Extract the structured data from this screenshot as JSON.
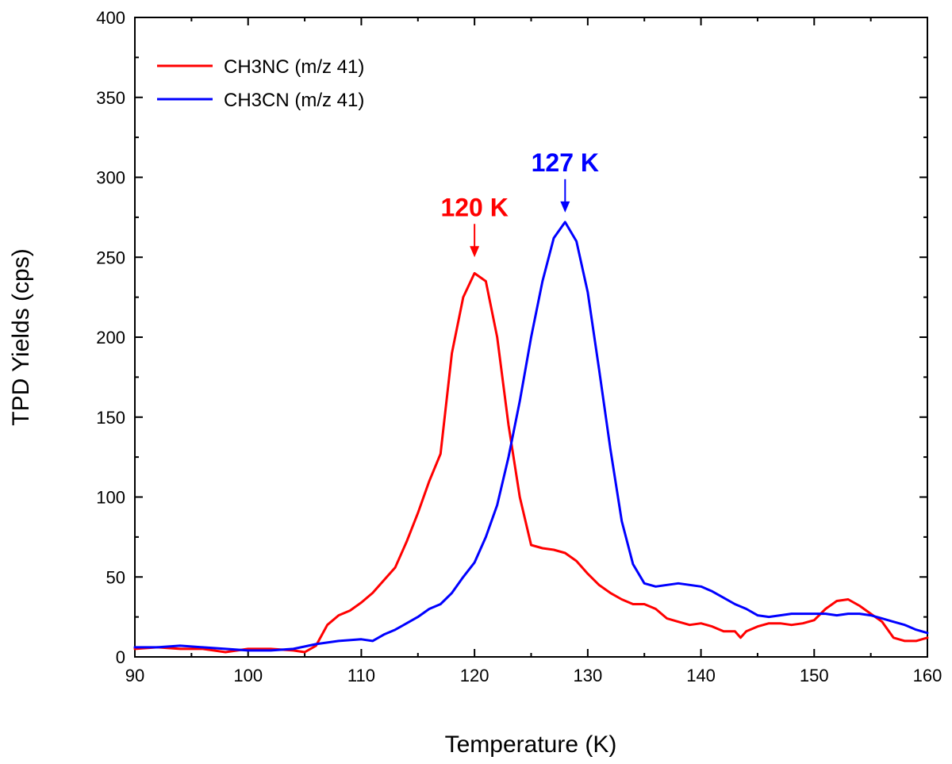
{
  "chart_data": {
    "type": "line",
    "title": "",
    "xlabel": "Temperature (K)",
    "ylabel": "TPD Yields (cps)",
    "xlim": [
      90,
      160
    ],
    "ylim": [
      0,
      400
    ],
    "x_ticks": [
      90,
      100,
      110,
      120,
      130,
      140,
      150,
      160
    ],
    "y_ticks": [
      0,
      50,
      100,
      150,
      200,
      250,
      300,
      350,
      400
    ],
    "grid": false,
    "legend_position": "top-left",
    "series": [
      {
        "name": "CH3NC (m/z 41)",
        "color": "#ff0000",
        "x": [
          90,
          92,
          94,
          96,
          98,
          100,
          102,
          104,
          105,
          106,
          107,
          108,
          109,
          110,
          111,
          112,
          113,
          114,
          115,
          116,
          117,
          118,
          119,
          120,
          121,
          122,
          123,
          124,
          125,
          126,
          127,
          128,
          129,
          130,
          131,
          132,
          133,
          134,
          135,
          136,
          137,
          138,
          139,
          140,
          141,
          142,
          143,
          143.5,
          144,
          145,
          146,
          147,
          148,
          149,
          150,
          151,
          152,
          153,
          154,
          155,
          156,
          157,
          158,
          159,
          160
        ],
        "values": [
          5,
          6,
          5,
          5,
          3,
          5,
          5,
          4,
          3,
          7,
          20,
          26,
          29,
          34,
          40,
          48,
          56,
          72,
          90,
          110,
          127,
          190,
          225,
          240,
          235,
          200,
          145,
          100,
          70,
          68,
          67,
          65,
          60,
          52,
          45,
          40,
          36,
          33,
          33,
          30,
          24,
          22,
          20,
          21,
          19,
          16,
          16,
          12,
          16,
          19,
          21,
          21,
          20,
          21,
          23,
          30,
          35,
          36,
          32,
          27,
          22,
          12,
          10,
          10,
          12
        ]
      },
      {
        "name": "CH3CN (m/z 41)",
        "color": "#0000ff",
        "x": [
          90,
          92,
          94,
          96,
          98,
          100,
          102,
          104,
          106,
          108,
          110,
          111,
          112,
          113,
          114,
          115,
          116,
          117,
          118,
          119,
          120,
          121,
          122,
          123,
          124,
          125,
          126,
          127,
          128,
          129,
          130,
          131,
          132,
          133,
          134,
          135,
          136,
          137,
          138,
          139,
          140,
          141,
          142,
          143,
          144,
          145,
          146,
          147,
          148,
          149,
          150,
          151,
          152,
          153,
          154,
          155,
          156,
          157,
          158,
          159,
          160
        ],
        "values": [
          6,
          6,
          7,
          6,
          5,
          4,
          4,
          5,
          8,
          10,
          11,
          10,
          14,
          17,
          21,
          25,
          30,
          33,
          40,
          50,
          59,
          75,
          95,
          125,
          160,
          200,
          235,
          262,
          272,
          260,
          228,
          180,
          130,
          85,
          58,
          46,
          44,
          45,
          46,
          45,
          44,
          41,
          37,
          33,
          30,
          26,
          25,
          26,
          27,
          27,
          27,
          27,
          26,
          27,
          27,
          26,
          24,
          22,
          20,
          17,
          15
        ]
      }
    ],
    "annotations": [
      {
        "text": "120 K",
        "x": 120,
        "y": 250,
        "color": "#ff0000"
      },
      {
        "text": "127 K",
        "x": 128,
        "y": 278,
        "color": "#0000ff"
      }
    ]
  }
}
